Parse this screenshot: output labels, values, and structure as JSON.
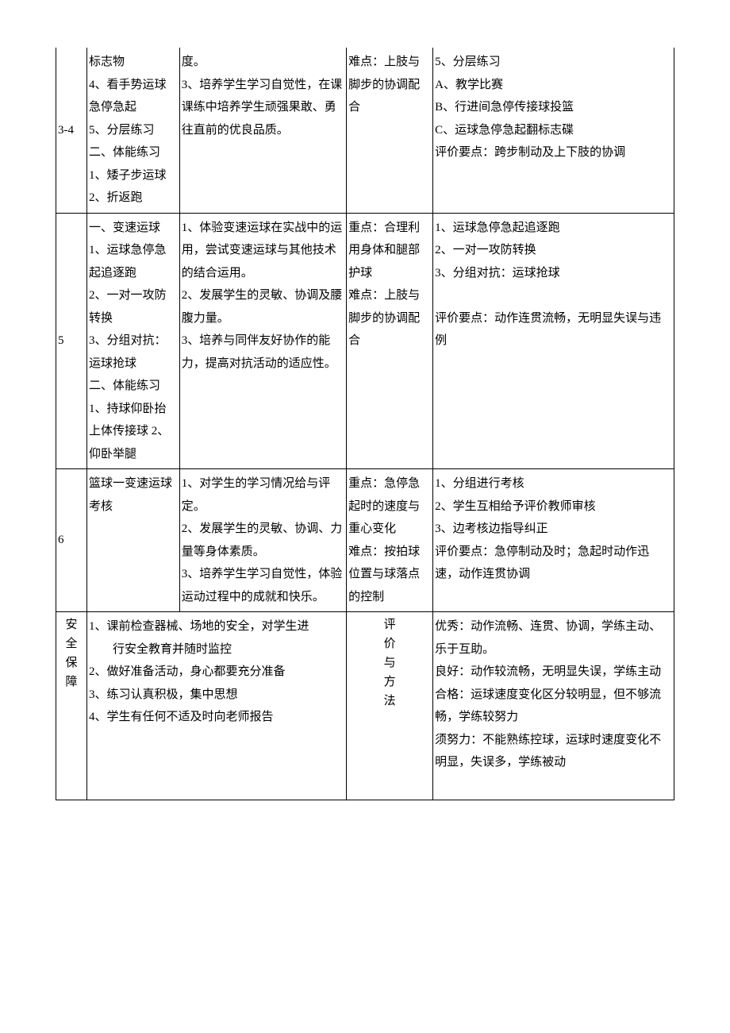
{
  "row1": {
    "c1": "3-4",
    "c2": "标志物\n4、看手势运球急停急起\n5、分层练习二、体能练习\n1、矮子步运球\n2、折返跑",
    "c3": "度。\n3、培养学生学习自觉性，在课课练中培养学生顽强果敢、勇往直前的优良品质。",
    "c4": "难点：上肢与脚步的协调配合",
    "c5": "5、分层练习\nA、教学比赛\nB、行进间急停传接球投篮\nC、运球急停急起翻标志碟\n评价要点：跨步制动及上下肢的协调"
  },
  "row2": {
    "c1": "5",
    "c2": "一、变速运球\n1、运球急停急起追逐跑\n2、一对一攻防转换\n3、分组对抗：运球抢球\n二、体能练习\n1、持球仰卧抬上体传接球 2、仰卧举腿",
    "c3": "1、体验变速运球在实战中的运用，尝试变速运球与其他技术的结合运用。\n2、发展学生的灵敏、协调及腰腹力量。\n3、培养与同伴友好协作的能力，提高对抗活动的适应性。",
    "c4": "重点：合理利用身体和腿部护球\n难点：上肢与脚步的协调配合",
    "c5": "1、运球急停急起追逐跑\n2、一对一攻防转换\n3、分组对抗：运球抢球\n\n评价要点：动作连贯流畅，无明显失误与违例"
  },
  "row3": {
    "c1": "6",
    "c2": "篮球一变速运球考核",
    "c3": "1、对学生的学习情况给与评定。\n2、发展学生的灵敏、协调、力量等身体素质。\n3、培养学生学习自觉性，体验运动过程中的成就和快乐。",
    "c4": "重点：急停急起时的速度与重心变化\n难点：按拍球位置与球落点的控制",
    "c5": "1、分组进行考核\n2、学生互相给予评价教师审核\n3、边考核边指导纠正\n评价要点：急停制动及时；急起时动作迅速，动作连贯协调"
  },
  "row4": {
    "c1": "安全保障",
    "c2": "1、课前检查器械、场地的安全，对学生进\n　　行安全教育并随时监控\n2、做好准备活动，身心都要充分准备\n3、练习认真积极，集中思想\n4、学生有任何不适及时向老师报告",
    "c4": "评价与方法",
    "c5": "优秀：动作流畅、连贯、协调，学练主动、乐于互助。\n良好：动作较流畅，无明显失误，学练主动\n合格：运球速度变化区分较明显，但不够流畅，学练较努力\n须努力：不能熟练控球，运球时速度变化不明显，失误多，学练被动\n\n"
  }
}
